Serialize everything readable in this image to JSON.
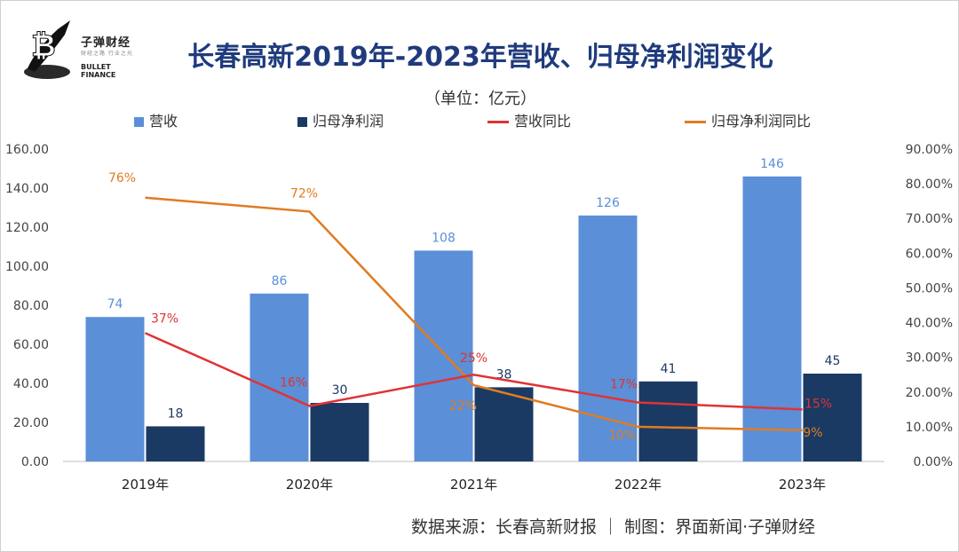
{
  "header": {
    "title": "长春高新2019年-2023年营收、归母净利润变化",
    "subtitle": "（单位：亿元）"
  },
  "logo": {
    "name_cn": "子弹财经",
    "tagline": "财经之路 行业之光",
    "name_en": "BULLET FINANCE"
  },
  "footer": {
    "source": "数据来源：长春高新财报 ｜ 制图：界面新闻·子弹财经"
  },
  "colors": {
    "revenue": "#5b8fd8",
    "profit": "#1a3a63",
    "revenue_yoy": "#e03333",
    "profit_yoy": "#e07b22",
    "title": "#1f3b7d"
  },
  "chart_data": {
    "type": "bar+line",
    "categories": [
      "2019年",
      "2020年",
      "2021年",
      "2022年",
      "2023年"
    ],
    "series": [
      {
        "name": "营收",
        "type": "bar",
        "axis": "left",
        "values": [
          74,
          86,
          108,
          126,
          146
        ],
        "labels": [
          "74",
          "86",
          "108",
          "126",
          "146"
        ]
      },
      {
        "name": "归母净利润",
        "type": "bar",
        "axis": "left",
        "values": [
          18,
          30,
          38,
          41,
          45
        ],
        "labels": [
          "18",
          "30",
          "38",
          "41",
          "45"
        ]
      },
      {
        "name": "营收同比",
        "type": "line",
        "axis": "right",
        "values": [
          37,
          16,
          25,
          17,
          15
        ],
        "labels": [
          "37%",
          "16%",
          "25%",
          "17%",
          "15%"
        ]
      },
      {
        "name": "归母净利润同比",
        "type": "line",
        "axis": "right",
        "values": [
          76,
          72,
          22,
          10,
          9
        ],
        "labels": [
          "76%",
          "72%",
          "22%",
          "10%",
          "9%"
        ]
      }
    ],
    "y_left": {
      "min": 0,
      "max": 160,
      "step": 20,
      "ticks": [
        "0.00",
        "20.00",
        "40.00",
        "60.00",
        "80.00",
        "100.00",
        "120.00",
        "140.00",
        "160.00"
      ]
    },
    "y_right": {
      "min": 0,
      "max": 90,
      "step": 10,
      "ticks": [
        "0.00%",
        "10.00%",
        "20.00%",
        "30.00%",
        "40.00%",
        "50.00%",
        "60.00%",
        "70.00%",
        "80.00%",
        "90.00%"
      ]
    },
    "legend_position": "top"
  }
}
